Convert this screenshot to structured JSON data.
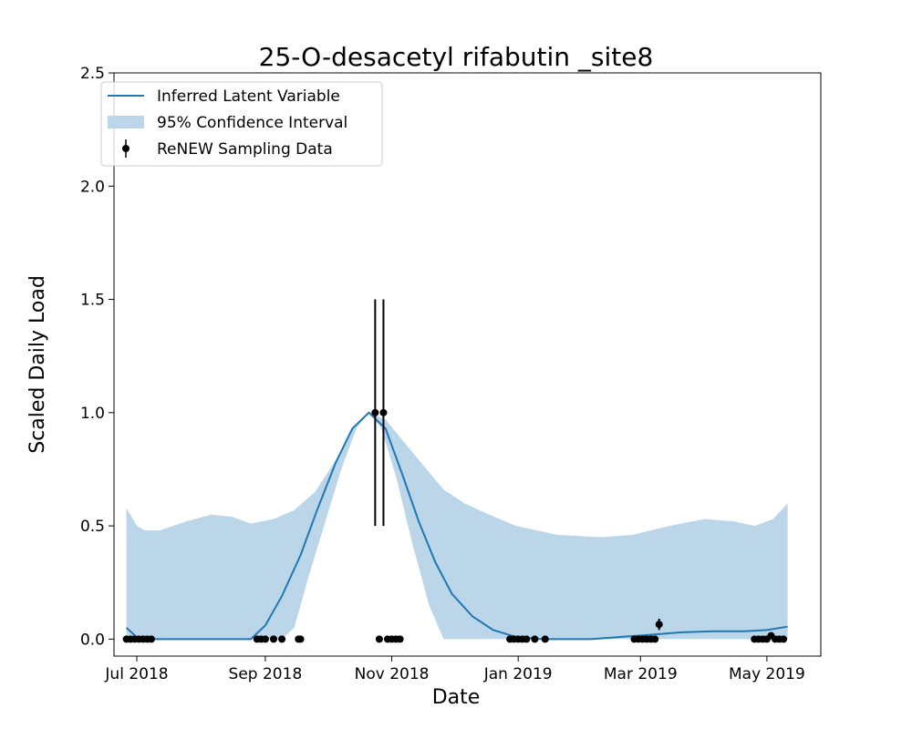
{
  "chart_data": {
    "type": "line",
    "title": "25-O-desacetyl rifabutin _site8",
    "xlabel": "Date",
    "ylabel": "Scaled Daily Load",
    "xlim": [
      "2018-06-20",
      "2019-05-27"
    ],
    "ylim": [
      -0.075,
      2.5
    ],
    "y_ticks": [
      0.0,
      0.5,
      1.0,
      1.5,
      2.0,
      2.5
    ],
    "y_tick_labels": [
      "0.0",
      "0.5",
      "1.0",
      "1.5",
      "2.0",
      "2.5"
    ],
    "x_ticks": [
      "2018-07-01",
      "2018-09-01",
      "2018-11-01",
      "2019-01-01",
      "2019-03-01",
      "2019-05-01"
    ],
    "x_tick_labels": [
      "Jul 2018",
      "Sep 2018",
      "Nov 2018",
      "Jan 2019",
      "Mar 2019",
      "May 2019"
    ],
    "legend_position": "top-left",
    "grid": false,
    "colors": {
      "line": "#1f77b4",
      "band": "#bbd6e8",
      "points": "#000000"
    },
    "legend": [
      {
        "label": "Inferred Latent Variable",
        "kind": "line"
      },
      {
        "label": "95% Confidence Interval",
        "kind": "band"
      },
      {
        "label": "ReNEW Sampling Data",
        "kind": "errorbar"
      }
    ],
    "series": [
      {
        "name": "Inferred Latent Variable",
        "kind": "line",
        "points": [
          [
            "2018-06-26",
            0.05
          ],
          [
            "2018-07-02",
            0.0
          ],
          [
            "2018-07-20",
            0.0
          ],
          [
            "2018-08-10",
            0.0
          ],
          [
            "2018-08-25",
            0.0
          ],
          [
            "2018-09-01",
            0.06
          ],
          [
            "2018-09-09",
            0.19
          ],
          [
            "2018-09-18",
            0.37
          ],
          [
            "2018-09-26",
            0.57
          ],
          [
            "2018-10-05",
            0.78
          ],
          [
            "2018-10-13",
            0.93
          ],
          [
            "2018-10-21",
            1.0
          ],
          [
            "2018-10-29",
            0.93
          ],
          [
            "2018-11-06",
            0.73
          ],
          [
            "2018-11-14",
            0.52
          ],
          [
            "2018-11-22",
            0.34
          ],
          [
            "2018-11-30",
            0.2
          ],
          [
            "2018-12-10",
            0.1
          ],
          [
            "2018-12-20",
            0.04
          ],
          [
            "2018-12-31",
            0.01
          ],
          [
            "2019-01-12",
            0.0
          ],
          [
            "2019-02-05",
            0.0
          ],
          [
            "2019-02-20",
            0.01
          ],
          [
            "2019-03-07",
            0.02
          ],
          [
            "2019-03-21",
            0.03
          ],
          [
            "2019-04-05",
            0.035
          ],
          [
            "2019-04-20",
            0.035
          ],
          [
            "2019-05-01",
            0.04
          ],
          [
            "2019-05-11",
            0.055
          ]
        ]
      },
      {
        "name": "95% Confidence Interval",
        "kind": "band",
        "upper": [
          [
            "2018-06-26",
            0.58
          ],
          [
            "2018-07-01",
            0.5
          ],
          [
            "2018-07-05",
            0.48
          ],
          [
            "2018-07-12",
            0.48
          ],
          [
            "2018-07-25",
            0.52
          ],
          [
            "2018-08-06",
            0.55
          ],
          [
            "2018-08-16",
            0.54
          ],
          [
            "2018-08-25",
            0.51
          ],
          [
            "2018-09-05",
            0.53
          ],
          [
            "2018-09-15",
            0.57
          ],
          [
            "2018-09-25",
            0.65
          ],
          [
            "2018-10-05",
            0.79
          ],
          [
            "2018-10-13",
            0.93
          ],
          [
            "2018-10-21",
            1.0
          ],
          [
            "2018-10-29",
            0.97
          ],
          [
            "2018-11-06",
            0.88
          ],
          [
            "2018-11-16",
            0.77
          ],
          [
            "2018-11-26",
            0.66
          ],
          [
            "2018-12-06",
            0.6
          ],
          [
            "2018-12-18",
            0.55
          ],
          [
            "2018-12-31",
            0.5
          ],
          [
            "2019-01-20",
            0.46
          ],
          [
            "2019-02-10",
            0.45
          ],
          [
            "2019-02-25",
            0.46
          ],
          [
            "2019-03-15",
            0.5
          ],
          [
            "2019-04-01",
            0.53
          ],
          [
            "2019-04-15",
            0.52
          ],
          [
            "2019-04-25",
            0.5
          ],
          [
            "2019-05-04",
            0.53
          ],
          [
            "2019-05-11",
            0.6
          ]
        ],
        "lower": [
          [
            "2018-06-26",
            0.0
          ],
          [
            "2018-09-09",
            0.0
          ],
          [
            "2018-09-15",
            0.05
          ],
          [
            "2018-09-22",
            0.28
          ],
          [
            "2018-09-30",
            0.52
          ],
          [
            "2018-10-08",
            0.76
          ],
          [
            "2018-10-15",
            0.93
          ],
          [
            "2018-10-21",
            1.0
          ],
          [
            "2018-10-27",
            0.93
          ],
          [
            "2018-11-03",
            0.72
          ],
          [
            "2018-11-11",
            0.42
          ],
          [
            "2018-11-19",
            0.15
          ],
          [
            "2018-11-26",
            0.0
          ],
          [
            "2019-05-11",
            0.0
          ]
        ]
      },
      {
        "name": "ReNEW Sampling Data",
        "kind": "errorbar",
        "points": [
          {
            "x": "2018-06-26",
            "y": 0.0
          },
          {
            "x": "2018-06-28",
            "y": 0.0
          },
          {
            "x": "2018-06-30",
            "y": 0.0
          },
          {
            "x": "2018-07-02",
            "y": 0.0
          },
          {
            "x": "2018-07-04",
            "y": 0.0
          },
          {
            "x": "2018-07-06",
            "y": 0.0
          },
          {
            "x": "2018-07-08",
            "y": 0.0
          },
          {
            "x": "2018-08-28",
            "y": 0.0
          },
          {
            "x": "2018-08-30",
            "y": 0.0
          },
          {
            "x": "2018-09-01",
            "y": 0.0
          },
          {
            "x": "2018-09-05",
            "y": 0.0
          },
          {
            "x": "2018-09-09",
            "y": 0.0
          },
          {
            "x": "2018-09-17",
            "y": 0.0
          },
          {
            "x": "2018-09-18",
            "y": 0.0
          },
          {
            "x": "2018-10-24",
            "y": 1.0,
            "err": 0.5
          },
          {
            "x": "2018-10-28",
            "y": 1.0,
            "err": 0.5
          },
          {
            "x": "2018-10-26",
            "y": 0.0
          },
          {
            "x": "2018-10-30",
            "y": 0.0
          },
          {
            "x": "2018-11-01",
            "y": 0.0
          },
          {
            "x": "2018-11-03",
            "y": 0.0
          },
          {
            "x": "2018-11-05",
            "y": 0.0
          },
          {
            "x": "2018-12-28",
            "y": 0.0
          },
          {
            "x": "2018-12-30",
            "y": 0.0
          },
          {
            "x": "2019-01-01",
            "y": 0.0
          },
          {
            "x": "2019-01-03",
            "y": 0.0
          },
          {
            "x": "2019-01-05",
            "y": 0.0
          },
          {
            "x": "2019-01-09",
            "y": 0.0
          },
          {
            "x": "2019-01-14",
            "y": 0.0
          },
          {
            "x": "2019-02-26",
            "y": 0.0
          },
          {
            "x": "2019-02-28",
            "y": 0.0
          },
          {
            "x": "2019-03-02",
            "y": 0.0
          },
          {
            "x": "2019-03-04",
            "y": 0.0
          },
          {
            "x": "2019-03-06",
            "y": 0.0
          },
          {
            "x": "2019-03-08",
            "y": 0.0
          },
          {
            "x": "2019-03-10",
            "y": 0.065,
            "err": 0.025
          },
          {
            "x": "2019-04-25",
            "y": 0.0
          },
          {
            "x": "2019-04-27",
            "y": 0.0
          },
          {
            "x": "2019-04-29",
            "y": 0.0
          },
          {
            "x": "2019-05-01",
            "y": 0.0
          },
          {
            "x": "2019-05-03",
            "y": 0.015
          },
          {
            "x": "2019-05-05",
            "y": 0.0
          },
          {
            "x": "2019-05-07",
            "y": 0.0
          },
          {
            "x": "2019-05-09",
            "y": 0.0
          }
        ]
      }
    ]
  }
}
